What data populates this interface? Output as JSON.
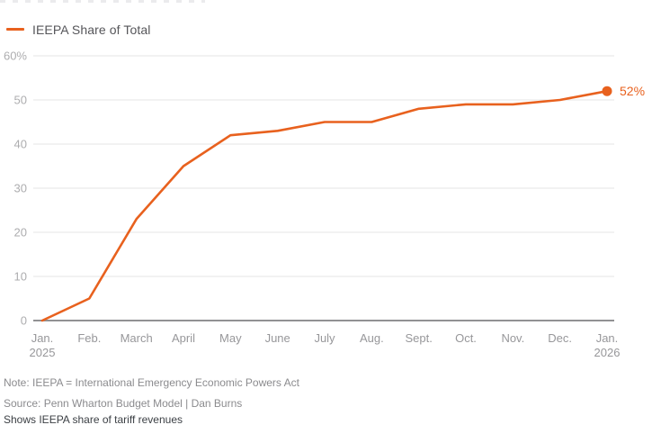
{
  "legend": {
    "label": "IEEPA Share of Total"
  },
  "colors": {
    "line": "#E8611E",
    "marker": "#E8611E",
    "end_label": "#E8611E",
    "grid": "#E6E6E6",
    "baseline": "#919193",
    "ytick": "#ADADAF",
    "xtick": "#97979A",
    "legend_text": "#56565A",
    "note_text": "#8B8B8E",
    "caption_text": "#3C4045"
  },
  "chart_data": {
    "type": "line",
    "title": "",
    "series_name": "IEEPA Share of Total",
    "categories": [
      "Jan.",
      "Feb.",
      "March",
      "April",
      "May",
      "June",
      "July",
      "Aug.",
      "Sept.",
      "Oct.",
      "Nov.",
      "Dec.",
      "Jan."
    ],
    "year_labels": [
      {
        "index": 0,
        "text": "2025"
      },
      {
        "index": 12,
        "text": "2026"
      }
    ],
    "values": [
      0,
      5,
      23,
      35,
      42,
      43,
      45,
      45,
      48,
      49,
      49,
      50,
      52
    ],
    "unit": "%",
    "ylim": [
      0,
      60
    ],
    "yticks": [
      0,
      10,
      20,
      30,
      40,
      50,
      60
    ],
    "ytick_labels": [
      "0",
      "10",
      "20",
      "30",
      "40",
      "50",
      "60%"
    ],
    "end_label": "52%",
    "grid": "horizontal",
    "legend_position": "top-left"
  },
  "footer": {
    "note": "Note: IEEPA = International Emergency Economic Powers Act",
    "source": "Source: Penn Wharton Budget Model | Dan Burns",
    "caption": "Shows IEEPA share of tariff revenues"
  }
}
